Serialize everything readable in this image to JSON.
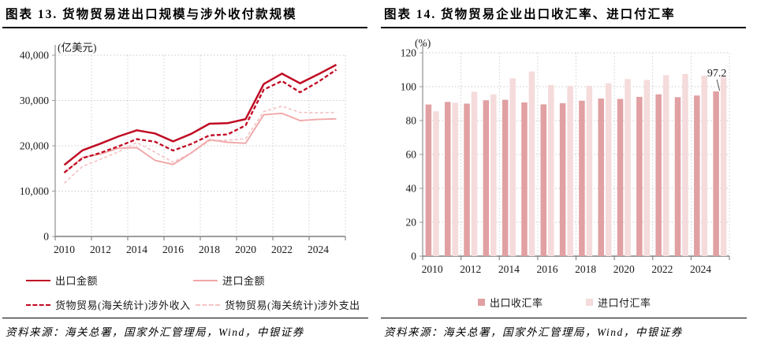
{
  "panels": [
    {
      "title": "图表 13. 货物贸易进出口规模与涉外收付款规模",
      "source": "资料来源：海关总署，国家外汇管理局，Wind，中银证券"
    },
    {
      "title": "图表 14. 货物贸易企业出口收汇率、进口付汇率",
      "source": "资料来源：海关总署，国家外汇管理局，Wind，中银证券"
    }
  ],
  "colors": {
    "grid": "#c9c9c9",
    "x_axis": "#7f7f7f",
    "y_axis": "#a0a0a0",
    "annotation_line": "#555555",
    "dark_red": "#c00a23",
    "pink": "#f1a7a8"
  },
  "chart_data": [
    {
      "type": "line",
      "title": "货物贸易进出口规模与涉外收付款规模",
      "ylabel": "(亿美元)",
      "ylim": [
        0,
        40000
      ],
      "yticks": [
        0,
        10000,
        20000,
        30000,
        40000
      ],
      "x": [
        2010,
        2011,
        2012,
        2013,
        2014,
        2015,
        2016,
        2017,
        2018,
        2019,
        2020,
        2021,
        2022,
        2023,
        2024,
        2025
      ],
      "xticklabels": [
        "2010",
        "2012",
        "2014",
        "2016",
        "2018",
        "2020",
        "2022",
        "2024"
      ],
      "grid": "dotted",
      "legend_position": "bottom",
      "series": [
        {
          "name": "出口金额",
          "line_style": "solid",
          "color": "#c00a23",
          "values": [
            15778,
            18984,
            20487,
            22090,
            23423,
            22735,
            20976,
            22635,
            24867,
            24995,
            25900,
            33640,
            35936,
            33800,
            35772,
            37900
          ]
        },
        {
          "name": "进口金额",
          "line_style": "solid",
          "color": "#f1a7a8",
          "values": [
            13962,
            17435,
            18184,
            19500,
            19592,
            16796,
            15879,
            18438,
            21357,
            20784,
            20556,
            26844,
            27160,
            25568,
            25850,
            25950
          ]
        },
        {
          "name": "货物贸易(海关统计)涉外收入",
          "line_style": "dashed",
          "color": "#c00a23",
          "values": [
            14100,
            17250,
            18450,
            19900,
            21480,
            20900,
            18950,
            20400,
            22300,
            22500,
            24520,
            32400,
            34300,
            31800,
            34100,
            36800
          ]
        },
        {
          "name": "货物贸易(海关统计)涉外支出",
          "line_style": "dashed",
          "color": "#f5c4c5",
          "values": [
            11750,
            15450,
            17050,
            18700,
            20750,
            18600,
            16400,
            18400,
            21100,
            21250,
            21550,
            27550,
            28750,
            27350,
            27300,
            27350
          ]
        }
      ]
    },
    {
      "type": "bar",
      "title": "货物贸易企业出口收汇率、进口付汇率",
      "ylabel": "(%)",
      "ylim": [
        0,
        120
      ],
      "yticks": [
        0,
        20,
        40,
        60,
        80,
        100,
        120
      ],
      "categories": [
        2010,
        2011,
        2012,
        2013,
        2014,
        2015,
        2016,
        2017,
        2018,
        2019,
        2020,
        2021,
        2022,
        2023,
        2024,
        2025
      ],
      "xticklabels": [
        "2010",
        "2012",
        "2014",
        "2016",
        "2018",
        "2020",
        "2022",
        "2024"
      ],
      "grid": "dotted",
      "legend_position": "bottom",
      "series": [
        {
          "name": "出口收汇率",
          "color": "#e1a0a2",
          "values": [
            89.5,
            91,
            90,
            92,
            92.3,
            90.7,
            89.6,
            90.3,
            91.7,
            93,
            92.8,
            94,
            95.5,
            93.8,
            94.8,
            97.2
          ]
        },
        {
          "name": "进口付汇率",
          "color": "#f5dbdb",
          "values": [
            85.5,
            90.5,
            97,
            95.5,
            105,
            109,
            101,
            100.5,
            100.5,
            102,
            104.5,
            104,
            106.8,
            107.5,
            106.5,
            105.8
          ]
        }
      ],
      "annotation": {
        "text": "97.2",
        "series": 0,
        "index": 15
      }
    }
  ]
}
